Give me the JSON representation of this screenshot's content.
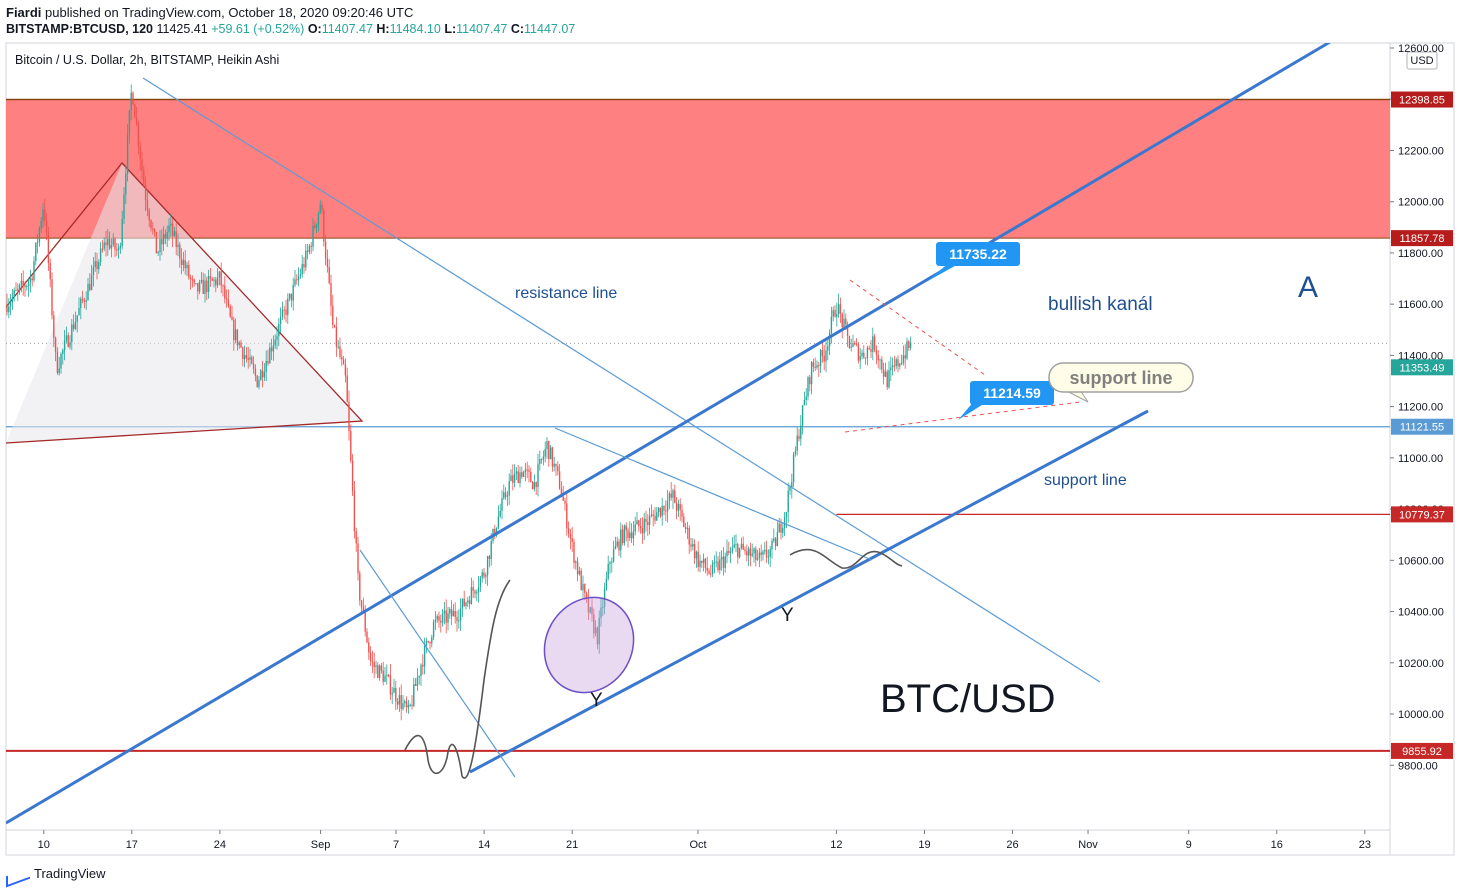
{
  "header": {
    "author": "Fiardi",
    "published_text": "published on TradingView.com, October 18, 2020 09:20:46 UTC",
    "symbol": "BITSTAMP:BTCUSD, 120",
    "last_price": "11425.41",
    "change": "+59.61 (+0.52%)",
    "open_label": "O:",
    "open": "11407.47",
    "high_label": "H:",
    "high": "11484.10",
    "low_label": "L:",
    "low": "11407.47",
    "close_label": "C:",
    "close": "11447.07"
  },
  "footer": {
    "brand": "TradingView"
  },
  "chart_data": {
    "type": "candlestick",
    "title": "Bitcoin / U.S. Dollar, 2h, BITSTAMP, Heikin Ashi",
    "currency_label": "USD",
    "ylim": [
      9680,
      12600
    ],
    "y_ticks": [
      9800,
      10000,
      10200,
      10400,
      10600,
      10800,
      11000,
      11200,
      11400,
      11600,
      11800,
      12000,
      12200,
      12400,
      12600
    ],
    "y_tick_labels": [
      "9800.00",
      "10000.00",
      "10200.00",
      "10400.00",
      "10600.00",
      "10800.00",
      "11000.00",
      "11200.00",
      "11400.00",
      "11600.00",
      "11800.00",
      "12000.00",
      "12200.00",
      "12400.00",
      "12600.00"
    ],
    "x_start": "2020-08-07",
    "x_end": "2020-11-25",
    "x_ticks": [
      {
        "date": "2020-08-10",
        "label": "10"
      },
      {
        "date": "2020-08-17",
        "label": "17"
      },
      {
        "date": "2020-08-24",
        "label": "24"
      },
      {
        "date": "2020-09-01",
        "label": "Sep"
      },
      {
        "date": "2020-09-07",
        "label": "7"
      },
      {
        "date": "2020-09-14",
        "label": "14"
      },
      {
        "date": "2020-09-21",
        "label": "21"
      },
      {
        "date": "2020-10-01",
        "label": "Oct"
      },
      {
        "date": "2020-10-12",
        "label": "12"
      },
      {
        "date": "2020-10-19",
        "label": "19"
      },
      {
        "date": "2020-10-26",
        "label": "26"
      },
      {
        "date": "2020-11-01",
        "label": "Nov"
      },
      {
        "date": "2020-11-09",
        "label": "9"
      },
      {
        "date": "2020-11-16",
        "label": "16"
      },
      {
        "date": "2020-11-23",
        "label": "23"
      }
    ],
    "price_path": [
      [
        "2020-08-07",
        11600
      ],
      [
        "2020-08-09",
        11700
      ],
      [
        "2020-08-10",
        12000
      ],
      [
        "2020-08-11",
        11350
      ],
      [
        "2020-08-13",
        11600
      ],
      [
        "2020-08-15",
        11850
      ],
      [
        "2020-08-16",
        11800
      ],
      [
        "2020-08-17",
        12450
      ],
      [
        "2020-08-18",
        12050
      ],
      [
        "2020-08-19",
        11800
      ],
      [
        "2020-08-20",
        11900
      ],
      [
        "2020-08-22",
        11650
      ],
      [
        "2020-08-24",
        11700
      ],
      [
        "2020-08-25",
        11500
      ],
      [
        "2020-08-26",
        11400
      ],
      [
        "2020-08-27",
        11300
      ],
      [
        "2020-08-29",
        11550
      ],
      [
        "2020-08-31",
        11800
      ],
      [
        "2020-09-01",
        12000
      ],
      [
        "2020-09-02",
        11500
      ],
      [
        "2020-09-03",
        11300
      ],
      [
        "2020-09-04",
        10500
      ],
      [
        "2020-09-05",
        10200
      ],
      [
        "2020-09-06",
        10150
      ],
      [
        "2020-09-08",
        10000
      ],
      [
        "2020-09-09",
        10200
      ],
      [
        "2020-09-10",
        10350
      ],
      [
        "2020-09-12",
        10400
      ],
      [
        "2020-09-14",
        10550
      ],
      [
        "2020-09-15",
        10750
      ],
      [
        "2020-09-16",
        10900
      ],
      [
        "2020-09-17",
        10950
      ],
      [
        "2020-09-18",
        10900
      ],
      [
        "2020-09-19",
        11050
      ],
      [
        "2020-09-20",
        10900
      ],
      [
        "2020-09-21",
        10650
      ],
      [
        "2020-09-22",
        10450
      ],
      [
        "2020-09-23",
        10300
      ],
      [
        "2020-09-24",
        10600
      ],
      [
        "2020-09-25",
        10700
      ],
      [
        "2020-09-27",
        10750
      ],
      [
        "2020-09-29",
        10850
      ],
      [
        "2020-10-01",
        10600
      ],
      [
        "2020-10-02",
        10550
      ],
      [
        "2020-10-04",
        10650
      ],
      [
        "2020-10-06",
        10600
      ],
      [
        "2020-10-07",
        10650
      ],
      [
        "2020-10-08",
        10800
      ],
      [
        "2020-10-09",
        11100
      ],
      [
        "2020-10-10",
        11350
      ],
      [
        "2020-10-11",
        11400
      ],
      [
        "2020-10-12",
        11600
      ],
      [
        "2020-10-13",
        11450
      ],
      [
        "2020-10-14",
        11400
      ],
      [
        "2020-10-15",
        11450
      ],
      [
        "2020-10-16",
        11300
      ],
      [
        "2020-10-17",
        11380
      ],
      [
        "2020-10-18",
        11447
      ]
    ],
    "zones": [
      {
        "type": "resistance",
        "from": 11857.78,
        "to": 12398.85,
        "color": "#ff8080"
      }
    ],
    "horizontal_lines": [
      {
        "price": 11121.55,
        "color": "#5b9bd5"
      },
      {
        "price": 10779.37,
        "color": "#c62828"
      },
      {
        "price": 9855.92,
        "color": "#c62828"
      }
    ],
    "price_labels": [
      {
        "value": "12398.85",
        "color": "#b71c1c"
      },
      {
        "value": "11857.78",
        "color": "#b71c1c"
      },
      {
        "value": "11353.49",
        "color": "#26a69a"
      },
      {
        "value": "11121.55",
        "color": "#5b9bd5"
      },
      {
        "value": "10779.37",
        "color": "#c62828"
      },
      {
        "value": "9855.92",
        "color": "#c62828"
      }
    ],
    "callouts": [
      {
        "value": "11735.22",
        "color": "#2196f3"
      },
      {
        "value": "11214.59",
        "color": "#2196f3"
      }
    ],
    "annotations": [
      {
        "text": "resistance line",
        "color": "#1e4f91"
      },
      {
        "text": "bullish kanál",
        "color": "#1e4f91"
      },
      {
        "text": "A",
        "color": "#1e4f91"
      },
      {
        "text": "support line",
        "color": "#808080"
      },
      {
        "text": "support line",
        "color": "#1e4f91"
      },
      {
        "text": "BTC/USD",
        "color": "#131722"
      },
      {
        "text": "Y",
        "color": "#131722"
      },
      {
        "text": "Y",
        "color": "#131722"
      }
    ],
    "colors": {
      "up": "#26a69a",
      "down": "#ef5350",
      "channel": "#3a78d0",
      "trendline": "#5b9bd5"
    }
  }
}
